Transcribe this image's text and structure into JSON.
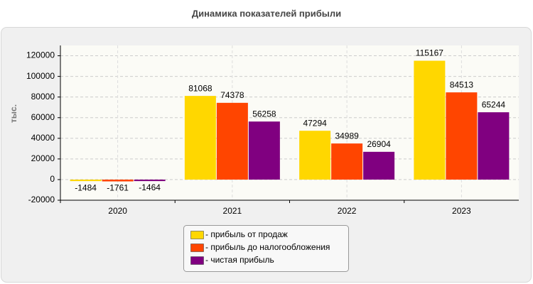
{
  "chart_data": {
    "type": "bar",
    "title": "Динамика показателей прибыли",
    "y_label": "тыс.",
    "categories": [
      "2020",
      "2021",
      "2022",
      "2023"
    ],
    "series": [
      {
        "name": "- прибыль от продаж",
        "color": "#ffd700",
        "values": [
          -1484,
          81068,
          47294,
          115167
        ]
      },
      {
        "name": "- прибыль до налогообложения",
        "color": "#ff4500",
        "values": [
          -1761,
          74378,
          34989,
          84513
        ]
      },
      {
        "name": "- чистая прибыль",
        "color": "#800080",
        "values": [
          -1464,
          56258,
          26904,
          65244
        ]
      }
    ],
    "ylim": [
      -20000,
      130000
    ],
    "yticks": [
      -20000,
      0,
      20000,
      40000,
      60000,
      80000,
      100000,
      120000
    ],
    "grid": true
  }
}
